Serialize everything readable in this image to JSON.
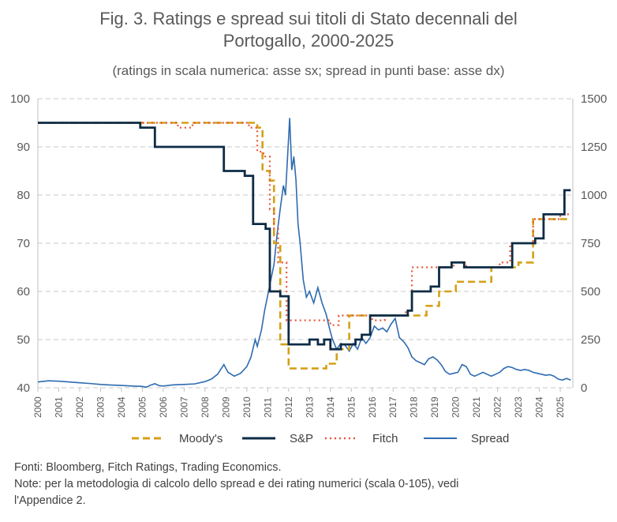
{
  "title": {
    "line1": "Fig. 3. Ratings e spread sui titoli di Stato decennali del",
    "line2": "Portogallo, 2000-2025"
  },
  "subtitle": "(ratings in scala numerica: asse sx; spread in punti base: asse dx)",
  "notes": {
    "line1": "Fonti: Bloomberg, Fitch Ratings, Trading Economics.",
    "line2": "Note: per la metodologia di calcolo dello spread e dei rating numerici (scala 0-105), vedi",
    "line3": "l'Appendice 2."
  },
  "colors": {
    "moodys": "#D4A017",
    "sp": "#0D2B45",
    "fitch": "#E8563A",
    "spread": "#2E6BB0",
    "grid": "#C8C8C8"
  },
  "chart_data": {
    "type": "line",
    "x_ticks": [
      "2000",
      "2001",
      "2002",
      "2003",
      "2004",
      "2005",
      "2006",
      "2007",
      "2008",
      "2009",
      "2010",
      "2011",
      "2012",
      "2013",
      "2014",
      "2015",
      "2016",
      "2017",
      "2018",
      "2019",
      "2020",
      "2021",
      "2022",
      "2023",
      "2024",
      "2025"
    ],
    "xlim": [
      2000,
      2025.6
    ],
    "y_left": {
      "ticks": [
        "100",
        "90",
        "80",
        "70",
        "60",
        "50",
        "40"
      ],
      "ylim": [
        40,
        100
      ]
    },
    "y_right": {
      "ticks": [
        "1500",
        "1250",
        "1000",
        "750",
        "500",
        "250",
        "0"
      ],
      "ylim": [
        0,
        1500
      ]
    },
    "legend": [
      "Moody's",
      "S&P",
      "Fitch",
      "Spread"
    ],
    "series": [
      {
        "name": "Moody's",
        "axis": "left",
        "style": "dashed",
        "step": [
          [
            2000,
            95
          ],
          [
            2010.5,
            94
          ],
          [
            2010.75,
            85
          ],
          [
            2011.1,
            83
          ],
          [
            2011.3,
            70
          ],
          [
            2011.6,
            49
          ],
          [
            2012.0,
            44
          ],
          [
            2013.8,
            45
          ],
          [
            2014.3,
            48
          ],
          [
            2014.9,
            55
          ],
          [
            2018.6,
            57
          ],
          [
            2019.2,
            60
          ],
          [
            2020.0,
            62
          ],
          [
            2021.7,
            65
          ],
          [
            2023.0,
            66
          ],
          [
            2023.7,
            75
          ],
          [
            2025.5,
            75
          ]
        ]
      },
      {
        "name": "S&P",
        "axis": "left",
        "style": "solid",
        "step": [
          [
            2000,
            95
          ],
          [
            2004.9,
            94
          ],
          [
            2005.6,
            90
          ],
          [
            2008.9,
            85
          ],
          [
            2009.9,
            84
          ],
          [
            2010.3,
            74
          ],
          [
            2010.9,
            73
          ],
          [
            2011.1,
            60
          ],
          [
            2011.6,
            59
          ],
          [
            2012.0,
            49
          ],
          [
            2013.0,
            50
          ],
          [
            2013.4,
            49
          ],
          [
            2013.7,
            50
          ],
          [
            2014.0,
            48
          ],
          [
            2014.5,
            49
          ],
          [
            2015.2,
            50
          ],
          [
            2015.5,
            51
          ],
          [
            2015.9,
            55
          ],
          [
            2017.7,
            56
          ],
          [
            2017.9,
            60
          ],
          [
            2018.8,
            61
          ],
          [
            2019.2,
            65
          ],
          [
            2019.8,
            66
          ],
          [
            2020.4,
            65
          ],
          [
            2022.7,
            70
          ],
          [
            2023.8,
            71
          ],
          [
            2024.2,
            76
          ],
          [
            2025.2,
            81
          ],
          [
            2025.5,
            81
          ]
        ]
      },
      {
        "name": "Fitch",
        "axis": "left",
        "style": "dotted",
        "step": [
          [
            2000,
            95
          ],
          [
            2006.7,
            94
          ],
          [
            2007.4,
            95
          ],
          [
            2010.1,
            94
          ],
          [
            2010.5,
            89
          ],
          [
            2010.8,
            88
          ],
          [
            2011.1,
            77
          ],
          [
            2011.3,
            73
          ],
          [
            2011.5,
            66
          ],
          [
            2011.9,
            54
          ],
          [
            2014.0,
            53
          ],
          [
            2014.4,
            55
          ],
          [
            2016.0,
            54
          ],
          [
            2016.6,
            55
          ],
          [
            2017.6,
            56
          ],
          [
            2017.9,
            65
          ],
          [
            2019.9,
            66
          ],
          [
            2020.5,
            65
          ],
          [
            2022.1,
            66
          ],
          [
            2022.6,
            70
          ],
          [
            2023.7,
            75
          ],
          [
            2025.0,
            76
          ],
          [
            2025.5,
            76
          ]
        ]
      },
      {
        "name": "Spread",
        "axis": "right",
        "style": "solid-thin",
        "points": [
          [
            2000,
            30
          ],
          [
            2000.5,
            36
          ],
          [
            2001,
            34
          ],
          [
            2001.5,
            30
          ],
          [
            2002,
            26
          ],
          [
            2002.5,
            22
          ],
          [
            2003,
            17
          ],
          [
            2003.5,
            14
          ],
          [
            2004,
            12
          ],
          [
            2004.5,
            9
          ],
          [
            2005,
            7
          ],
          [
            2005.2,
            3
          ],
          [
            2005.4,
            14
          ],
          [
            2005.6,
            21
          ],
          [
            2005.8,
            11
          ],
          [
            2006,
            9
          ],
          [
            2006.5,
            15
          ],
          [
            2007,
            17
          ],
          [
            2007.5,
            20
          ],
          [
            2008,
            32
          ],
          [
            2008.3,
            45
          ],
          [
            2008.6,
            70
          ],
          [
            2008.9,
            120
          ],
          [
            2009.1,
            80
          ],
          [
            2009.4,
            60
          ],
          [
            2009.7,
            75
          ],
          [
            2010,
            110
          ],
          [
            2010.2,
            160
          ],
          [
            2010.4,
            250
          ],
          [
            2010.5,
            215
          ],
          [
            2010.7,
            300
          ],
          [
            2010.85,
            400
          ],
          [
            2011.0,
            480
          ],
          [
            2011.15,
            560
          ],
          [
            2011.3,
            640
          ],
          [
            2011.45,
            800
          ],
          [
            2011.6,
            930
          ],
          [
            2011.75,
            1050
          ],
          [
            2011.85,
            1000
          ],
          [
            2011.95,
            1200
          ],
          [
            2012.05,
            1400
          ],
          [
            2012.15,
            1130
          ],
          [
            2012.25,
            1200
          ],
          [
            2012.35,
            1080
          ],
          [
            2012.45,
            850
          ],
          [
            2012.55,
            750
          ],
          [
            2012.7,
            560
          ],
          [
            2012.85,
            470
          ],
          [
            2013.0,
            500
          ],
          [
            2013.2,
            440
          ],
          [
            2013.4,
            520
          ],
          [
            2013.6,
            440
          ],
          [
            2013.8,
            380
          ],
          [
            2013.95,
            310
          ],
          [
            2014.1,
            250
          ],
          [
            2014.3,
            200
          ],
          [
            2014.5,
            230
          ],
          [
            2014.7,
            220
          ],
          [
            2014.9,
            190
          ],
          [
            2015.1,
            230
          ],
          [
            2015.3,
            200
          ],
          [
            2015.5,
            260
          ],
          [
            2015.7,
            230
          ],
          [
            2015.9,
            260
          ],
          [
            2016.1,
            320
          ],
          [
            2016.3,
            300
          ],
          [
            2016.5,
            310
          ],
          [
            2016.7,
            290
          ],
          [
            2016.9,
            330
          ],
          [
            2017.1,
            360
          ],
          [
            2017.3,
            260
          ],
          [
            2017.5,
            240
          ],
          [
            2017.7,
            210
          ],
          [
            2017.9,
            160
          ],
          [
            2018.1,
            140
          ],
          [
            2018.3,
            130
          ],
          [
            2018.5,
            120
          ],
          [
            2018.7,
            150
          ],
          [
            2018.9,
            160
          ],
          [
            2019.1,
            145
          ],
          [
            2019.3,
            120
          ],
          [
            2019.5,
            85
          ],
          [
            2019.7,
            70
          ],
          [
            2019.9,
            75
          ],
          [
            2020.1,
            80
          ],
          [
            2020.3,
            120
          ],
          [
            2020.5,
            110
          ],
          [
            2020.7,
            70
          ],
          [
            2020.9,
            60
          ],
          [
            2021.1,
            70
          ],
          [
            2021.3,
            80
          ],
          [
            2021.5,
            70
          ],
          [
            2021.7,
            60
          ],
          [
            2021.9,
            70
          ],
          [
            2022.1,
            80
          ],
          [
            2022.3,
            100
          ],
          [
            2022.5,
            110
          ],
          [
            2022.7,
            105
          ],
          [
            2022.9,
            95
          ],
          [
            2023.1,
            90
          ],
          [
            2023.3,
            95
          ],
          [
            2023.5,
            90
          ],
          [
            2023.7,
            80
          ],
          [
            2023.9,
            75
          ],
          [
            2024.1,
            70
          ],
          [
            2024.3,
            65
          ],
          [
            2024.5,
            68
          ],
          [
            2024.7,
            60
          ],
          [
            2024.9,
            45
          ],
          [
            2025.1,
            40
          ],
          [
            2025.3,
            48
          ],
          [
            2025.5,
            40
          ]
        ]
      }
    ]
  }
}
